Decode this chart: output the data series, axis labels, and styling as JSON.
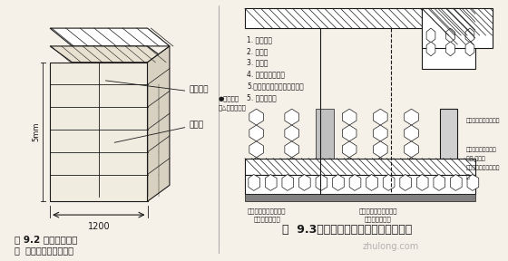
{
  "bg_color": "#f5f0e8",
  "line_color": "#1a1a1a",
  "hatch_color": "#333333",
  "fig_title_left": "图 9.2 叠茄板剖板图",
  "fig_note_left": "注  墙角处板应交错互锁",
  "fig_title_right": "图  9.3首层墙体构造及墙角构造处理图",
  "watermark": "zhulong.com",
  "label_1": "1. 品层粘木",
  "label_2": "2. 初粉层",
  "label_3": "3. 麦基板",
  "label_4": "4. 黎合物水泥砂浆",
  "label_5": "5.压入两品树玻璃纤维网格布",
  "label_6": "5. 底层粉刷层",
  "dim_label": "1200",
  "dim_h": "5mm",
  "left_label_top": "品层粘木",
  "left_label_mid": "麦基板"
}
